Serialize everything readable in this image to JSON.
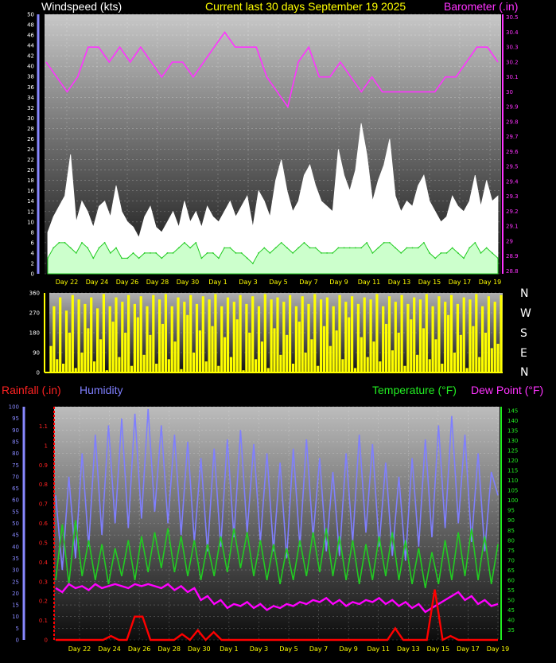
{
  "header": {
    "wind_label": "Windspeed (kts)",
    "title": "Current last 30 days September 19 2025",
    "baro_label": "Barometer (.in)"
  },
  "bottom_header": {
    "rain_label": "Rainfall (.in)",
    "humidity_label": "Humidity",
    "temp_label": "Temperature (°F)",
    "dew_label": "Dew Point (°F)"
  },
  "colors": {
    "wind_gust": "#ffffff",
    "wind_avg": "#22cc22",
    "wind_light": "#ccffcc",
    "barometer": "#ff33ff",
    "direction": "#ffff00",
    "rain": "#ff0000",
    "humidity": "#7f7fff",
    "temperature": "#22cc22",
    "dewpoint": "#ff00ff",
    "day_labels": "#ffff00"
  },
  "compass": [
    "N",
    "W",
    "S",
    "E",
    "N"
  ],
  "chart_data": [
    {
      "type": "area",
      "panel": "wind-barometer",
      "x_labels": [
        "Day 22",
        "Day 24",
        "Day 26",
        "Day 28",
        "Day 30",
        "Day 1",
        "Day 3",
        "Day 5",
        "Day 7",
        "Day 9",
        "Day 11",
        "Day 13",
        "Day 15",
        "Day 17",
        "Day 19"
      ],
      "y_left_ticks": [
        "0",
        "2",
        "4",
        "6",
        "8",
        "10",
        "12",
        "14",
        "16",
        "18",
        "20",
        "22",
        "24",
        "26",
        "28",
        "30",
        "32",
        "34",
        "36",
        "38",
        "40",
        "42",
        "44",
        "46",
        "48",
        "50"
      ],
      "y_left_label": "Windspeed (kts)",
      "ylim_left": [
        0,
        50
      ],
      "y_right_ticks": [
        "28.8",
        "28.9",
        "29",
        "29.1",
        "29.2",
        "29.3",
        "29.4",
        "29.5",
        "29.6",
        "29.7",
        "29.8",
        "29.9",
        "30",
        "30.1",
        "30.2",
        "30.3",
        "30.4",
        "30.5"
      ],
      "y_right_label": "Barometer (.in)",
      "ylim_right": [
        28.78,
        30.52
      ],
      "grid": true,
      "series": [
        {
          "name": "Barometer",
          "axis": "right",
          "values": [
            30.2,
            30.1,
            30.0,
            30.1,
            30.3,
            30.3,
            30.2,
            30.3,
            30.2,
            30.3,
            30.2,
            30.1,
            30.2,
            30.2,
            30.1,
            30.2,
            30.3,
            30.4,
            30.3,
            30.3,
            30.3,
            30.1,
            30.0,
            29.9,
            30.2,
            30.3,
            30.1,
            30.1,
            30.2,
            30.1,
            30.0,
            30.1,
            30.0,
            30.0,
            30.0,
            30.0,
            30.0,
            30.0,
            30.1,
            30.1,
            30.2,
            30.3,
            30.3,
            30.2
          ]
        },
        {
          "name": "Windspeed gust",
          "axis": "left",
          "values": [
            8,
            11,
            13,
            15,
            23,
            10,
            14,
            12,
            9,
            13,
            14,
            11,
            17,
            12,
            10,
            9,
            7,
            11,
            13,
            9,
            8,
            10,
            12,
            9,
            14,
            10,
            12,
            9,
            13,
            11,
            10,
            12,
            14,
            11,
            13,
            15,
            9,
            16,
            14,
            11,
            18,
            22,
            16,
            12,
            14,
            19,
            21,
            17,
            14,
            13,
            12,
            24,
            19,
            16,
            20,
            29,
            23,
            14,
            18,
            21,
            26,
            15,
            12,
            14,
            13,
            17,
            19,
            14,
            12,
            10,
            11,
            15,
            13,
            12,
            14,
            19,
            13,
            18,
            14,
            15
          ]
        },
        {
          "name": "Windspeed average",
          "axis": "left",
          "values": [
            3,
            5,
            6,
            6,
            5,
            4,
            6,
            5,
            3,
            5,
            6,
            4,
            5,
            3,
            3,
            4,
            3,
            4,
            4,
            4,
            3,
            4,
            4,
            5,
            6,
            5,
            6,
            3,
            4,
            4,
            3,
            5,
            5,
            4,
            4,
            3,
            2,
            4,
            5,
            4,
            5,
            6,
            5,
            4,
            5,
            6,
            5,
            5,
            4,
            4,
            4,
            5,
            5,
            5,
            5,
            5,
            6,
            4,
            5,
            6,
            6,
            5,
            4,
            5,
            5,
            5,
            6,
            4,
            3,
            4,
            4,
            5,
            4,
            3,
            5,
            6,
            4,
            5,
            4,
            3
          ]
        }
      ]
    },
    {
      "type": "bar",
      "panel": "wind-direction",
      "y_ticks": [
        "0",
        "90",
        "180",
        "270",
        "360"
      ],
      "ylim": [
        0,
        360
      ],
      "grid": true,
      "series": [
        {
          "name": "Wind direction",
          "values": [
            120,
            300,
            60,
            340,
            40,
            280,
            180,
            350,
            20,
            330,
            90,
            310,
            200,
            340,
            50,
            290,
            150,
            355,
            10,
            300,
            230,
            340,
            70,
            320,
            180,
            350,
            30,
            310,
            250,
            345,
            80,
            300,
            170,
            350,
            40,
            330,
            220,
            355,
            60,
            300,
            140,
            340,
            15,
            320,
            260,
            350,
            90,
            310,
            190,
            345,
            50,
            330,
            210,
            355,
            30,
            300,
            160,
            340,
            70,
            320,
            240,
            350,
            10,
            310,
            180,
            345,
            60,
            300,
            140,
            355,
            20,
            330,
            200,
            340,
            80,
            320,
            170,
            350,
            40,
            300,
            230,
            345,
            90,
            310,
            150,
            355,
            30,
            330,
            210,
            340,
            120,
            300,
            190,
            350,
            60,
            320,
            250,
            345,
            20,
            310,
            160,
            340,
            70,
            330,
            140,
            355,
            50,
            300,
            220,
            345,
            100,
            320,
            180,
            350,
            30,
            310,
            240,
            340,
            80,
            330,
            200,
            355,
            60,
            300,
            150,
            345,
            40,
            320,
            260,
            350,
            90,
            310,
            170,
            340,
            20,
            330,
            210,
            355,
            70,
            300,
            180,
            345,
            110,
            320,
            130,
            350
          ]
        }
      ]
    },
    {
      "type": "line",
      "panel": "rain-humidity-temperature",
      "x_labels": [
        "Day 22",
        "Day 24",
        "Day 26",
        "Day 28",
        "Day 30",
        "Day 1",
        "Day 3",
        "Day 5",
        "Day 7",
        "Day 9",
        "Day 11",
        "Day 13",
        "Day 15",
        "Day 17",
        "Day 19"
      ],
      "y_humidity_ticks": [
        "0",
        "5",
        "10",
        "15",
        "20",
        "25",
        "30",
        "35",
        "40",
        "45",
        "50",
        "55",
        "60",
        "65",
        "70",
        "75",
        "80",
        "85",
        "90",
        "95",
        "100"
      ],
      "ylim_humidity": [
        0,
        100
      ],
      "y_rain_ticks": [
        "0",
        "0.1",
        "0.2",
        "0.3",
        "0.4",
        "0.5",
        "0.6",
        "0.7",
        "0.8",
        "0.9",
        "1",
        "1.1"
      ],
      "ylim_rain": [
        0,
        1.2
      ],
      "y_temp_ticks": [
        "35",
        "40",
        "45",
        "50",
        "55",
        "60",
        "65",
        "70",
        "75",
        "80",
        "85",
        "90",
        "95",
        "100",
        "105",
        "110",
        "115",
        "120",
        "125",
        "130",
        "135",
        "140",
        "145"
      ],
      "ylim_temp": [
        30,
        147
      ],
      "grid": true,
      "series": [
        {
          "name": "Humidity",
          "axis": "humidity",
          "values": [
            62,
            30,
            70,
            35,
            80,
            40,
            88,
            45,
            92,
            50,
            95,
            48,
            97,
            52,
            99,
            55,
            92,
            50,
            88,
            45,
            85,
            42,
            78,
            38,
            82,
            40,
            86,
            44,
            90,
            46,
            84,
            42,
            80,
            38,
            76,
            35,
            82,
            40,
            86,
            44,
            78,
            38,
            72,
            36,
            80,
            42,
            88,
            46,
            84,
            40,
            76,
            36,
            70,
            34,
            78,
            40,
            86,
            44,
            92,
            48,
            96,
            50,
            88,
            42,
            80,
            38,
            72,
            62
          ]
        },
        {
          "name": "Temperature",
          "axis": "temp",
          "values": [
            60,
            88,
            58,
            90,
            62,
            80,
            60,
            78,
            58,
            76,
            62,
            80,
            60,
            82,
            64,
            84,
            66,
            86,
            64,
            82,
            62,
            80,
            60,
            78,
            62,
            82,
            64,
            86,
            66,
            84,
            62,
            80,
            60,
            78,
            58,
            76,
            60,
            80,
            62,
            84,
            64,
            86,
            62,
            82,
            60,
            80,
            58,
            78,
            60,
            82,
            62,
            84,
            60,
            80,
            58,
            76,
            56,
            74,
            58,
            80,
            60,
            84,
            62,
            86,
            60,
            82,
            58,
            78
          ]
        },
        {
          "name": "Dew Point",
          "axis": "temp",
          "values": [
            56,
            54,
            58,
            56,
            57,
            55,
            58,
            56,
            57,
            58,
            57,
            56,
            58,
            57,
            58,
            57,
            56,
            58,
            55,
            57,
            54,
            56,
            50,
            52,
            48,
            50,
            46,
            48,
            47,
            49,
            46,
            48,
            45,
            47,
            46,
            48,
            47,
            49,
            48,
            50,
            49,
            51,
            48,
            50,
            47,
            49,
            48,
            50,
            49,
            51,
            48,
            50,
            47,
            49,
            46,
            48,
            44,
            46,
            48,
            50,
            52,
            54,
            50,
            52,
            48,
            50,
            47,
            48
          ]
        },
        {
          "name": "Rainfall",
          "axis": "rain",
          "values": [
            0,
            0,
            0,
            0,
            0,
            0,
            0,
            0.02,
            0,
            0,
            0.12,
            0.12,
            0,
            0,
            0,
            0,
            0.03,
            0,
            0.05,
            0,
            0.04,
            0,
            0,
            0,
            0,
            0,
            0,
            0,
            0,
            0,
            0,
            0,
            0,
            0,
            0,
            0,
            0,
            0,
            0,
            0,
            0,
            0,
            0,
            0.06,
            0,
            0,
            0,
            0,
            0.26,
            0,
            0.02,
            0,
            0,
            0,
            0,
            0,
            0
          ]
        }
      ]
    }
  ]
}
